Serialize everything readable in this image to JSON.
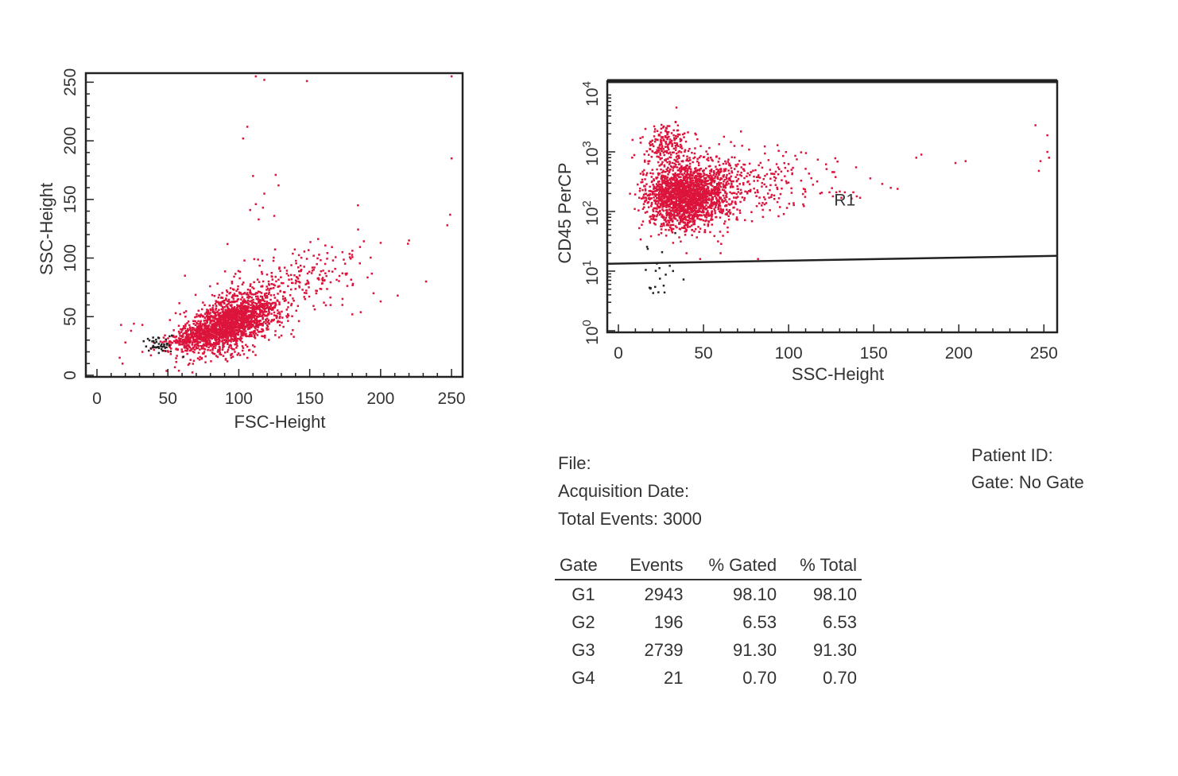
{
  "chart_data": [
    {
      "type": "scatter",
      "xlabel": "FSC-Height",
      "ylabel": "SSC-Height",
      "xlim": [
        0,
        255
      ],
      "ylim": [
        0,
        255
      ],
      "xticks": [
        0,
        50,
        100,
        150,
        200,
        250
      ],
      "yticks": [
        0,
        50,
        100,
        150,
        200,
        250
      ],
      "x_tick_labels": [
        "0",
        "50",
        "100",
        "150",
        "200",
        "250"
      ],
      "y_tick_labels": [
        "0",
        "50",
        "100",
        "150",
        "200",
        "250"
      ],
      "population_color": "#dc143c",
      "other_color": "#222222",
      "populations": [
        {
          "cx": 95,
          "cy": 45,
          "sx": 18,
          "sy": 10,
          "rot": 0.55,
          "n": 1700,
          "color": "#dc143c"
        },
        {
          "cx": 70,
          "cy": 33,
          "sx": 12,
          "sy": 5,
          "rot": 0.3,
          "n": 280,
          "color": "#dc143c"
        },
        {
          "cx": 140,
          "cy": 78,
          "sx": 26,
          "sy": 14,
          "rot": 0.5,
          "n": 230,
          "color": "#dc143c"
        },
        {
          "cx": 45,
          "cy": 25,
          "sx": 5,
          "sy": 4,
          "rot": 0,
          "n": 45,
          "color": "#222222"
        }
      ],
      "points": [
        {
          "x": 112,
          "y": 255
        },
        {
          "x": 118,
          "y": 252
        },
        {
          "x": 148,
          "y": 251
        },
        {
          "x": 250,
          "y": 255
        },
        {
          "x": 106,
          "y": 212
        },
        {
          "x": 103,
          "y": 202
        },
        {
          "x": 110,
          "y": 170
        },
        {
          "x": 126,
          "y": 171
        },
        {
          "x": 128,
          "y": 162
        },
        {
          "x": 118,
          "y": 155
        },
        {
          "x": 108,
          "y": 141
        },
        {
          "x": 112,
          "y": 146
        },
        {
          "x": 117,
          "y": 143
        },
        {
          "x": 114,
          "y": 133
        },
        {
          "x": 125,
          "y": 136
        },
        {
          "x": 184,
          "y": 145
        },
        {
          "x": 250,
          "y": 185
        },
        {
          "x": 249,
          "y": 137
        },
        {
          "x": 247,
          "y": 128
        },
        {
          "x": 200,
          "y": 113
        },
        {
          "x": 220,
          "y": 115
        },
        {
          "x": 232,
          "y": 80
        },
        {
          "x": 212,
          "y": 68
        },
        {
          "x": 195,
          "y": 70
        },
        {
          "x": 200,
          "y": 63
        },
        {
          "x": 173,
          "y": 60
        },
        {
          "x": 180,
          "y": 52
        },
        {
          "x": 20,
          "y": 28
        },
        {
          "x": 24,
          "y": 38
        },
        {
          "x": 26,
          "y": 44
        },
        {
          "x": 32,
          "y": 43
        },
        {
          "x": 17,
          "y": 43
        },
        {
          "x": 18,
          "y": 10
        },
        {
          "x": 16,
          "y": 15
        },
        {
          "x": 32,
          "y": 20
        },
        {
          "x": 38,
          "y": 17
        },
        {
          "x": 62,
          "y": 85
        },
        {
          "x": 92,
          "y": 112
        },
        {
          "x": 160,
          "y": 62
        },
        {
          "x": 110,
          "y": 20
        }
      ]
    },
    {
      "type": "scatter",
      "xlabel": "SSC-Height",
      "ylabel": "CD45 PerCP",
      "xlim": [
        0,
        255
      ],
      "yscale": "log",
      "ylim": [
        1,
        10000
      ],
      "xticks": [
        0,
        50,
        100,
        150,
        200,
        250
      ],
      "x_tick_labels": [
        "0",
        "50",
        "100",
        "150",
        "200",
        "250"
      ],
      "yticks": [
        1,
        10,
        100,
        1000,
        10000
      ],
      "y_tick_bases": [
        "10",
        "10",
        "10",
        "10",
        "10"
      ],
      "y_tick_exponents": [
        "0",
        "1",
        "2",
        "3",
        "4"
      ],
      "gate": {
        "name": "R1",
        "y_threshold": 15,
        "label_x": 133,
        "label_y": 160
      },
      "population_color": "#dc143c",
      "other_color": "#222222",
      "populations": [
        {
          "cx": 38,
          "cy": 180,
          "sx": 11,
          "sy": 0.13,
          "rot": 0,
          "n": 1700,
          "color": "#dc143c"
        },
        {
          "cx": 56,
          "cy": 250,
          "sx": 12,
          "sy": 0.14,
          "rot": 0,
          "n": 350,
          "color": "#dc143c"
        },
        {
          "cx": 28,
          "cy": 1350,
          "sx": 7,
          "sy": 0.08,
          "rot": 0,
          "n": 190,
          "color": "#dc143c"
        },
        {
          "cx": 85,
          "cy": 300,
          "sx": 22,
          "sy": 0.15,
          "rot": 0,
          "n": 180,
          "color": "#dc143c"
        },
        {
          "cx": 25,
          "cy": 7,
          "sx": 6,
          "sy": 0.12,
          "rot": 0,
          "n": 21,
          "color": "#222222"
        }
      ],
      "points": [
        {
          "x": 126,
          "y": 180
        },
        {
          "x": 131,
          "y": 170
        },
        {
          "x": 137,
          "y": 165
        },
        {
          "x": 140,
          "y": 180
        },
        {
          "x": 128,
          "y": 210
        },
        {
          "x": 124,
          "y": 210
        },
        {
          "x": 133,
          "y": 210
        },
        {
          "x": 142,
          "y": 170
        },
        {
          "x": 148,
          "y": 360
        },
        {
          "x": 155,
          "y": 290
        },
        {
          "x": 164,
          "y": 240
        },
        {
          "x": 175,
          "y": 800
        },
        {
          "x": 178,
          "y": 900
        },
        {
          "x": 198,
          "y": 650
        },
        {
          "x": 204,
          "y": 700
        },
        {
          "x": 245,
          "y": 2800
        },
        {
          "x": 247,
          "y": 480
        },
        {
          "x": 252,
          "y": 1900
        },
        {
          "x": 253,
          "y": 800
        },
        {
          "x": 252,
          "y": 1000
        },
        {
          "x": 248,
          "y": 700
        },
        {
          "x": 122,
          "y": 620
        },
        {
          "x": 98,
          "y": 540
        },
        {
          "x": 138,
          "y": 210
        },
        {
          "x": 160,
          "y": 250
        },
        {
          "x": 40,
          "y": 20
        },
        {
          "x": 48,
          "y": 16
        },
        {
          "x": 72,
          "y": 2200
        },
        {
          "x": 62,
          "y": 1800
        },
        {
          "x": 60,
          "y": 20
        },
        {
          "x": 82,
          "y": 16
        },
        {
          "x": 110,
          "y": 520
        }
      ]
    }
  ],
  "info": {
    "file_label": "File:",
    "file_value": "",
    "acq_label": "Acquisition Date:",
    "acq_value": "",
    "total_label": "Total Events:",
    "total_value": "3000",
    "patient_label": "Patient ID:",
    "patient_value": "",
    "gate_label": "Gate:",
    "gate_value": "No Gate"
  },
  "stats_table": {
    "headers": {
      "gate": "Gate",
      "events": "Events",
      "gated": "% Gated",
      "total": "% Total"
    },
    "rows": [
      {
        "gate": "G1",
        "events": "2943",
        "gated": "98.10",
        "total": "98.10"
      },
      {
        "gate": "G2",
        "events": "196",
        "gated": "6.53",
        "total": "6.53"
      },
      {
        "gate": "G3",
        "events": "2739",
        "gated": "91.30",
        "total": "91.30"
      },
      {
        "gate": "G4",
        "events": "21",
        "gated": "0.70",
        "total": "0.70"
      }
    ]
  }
}
